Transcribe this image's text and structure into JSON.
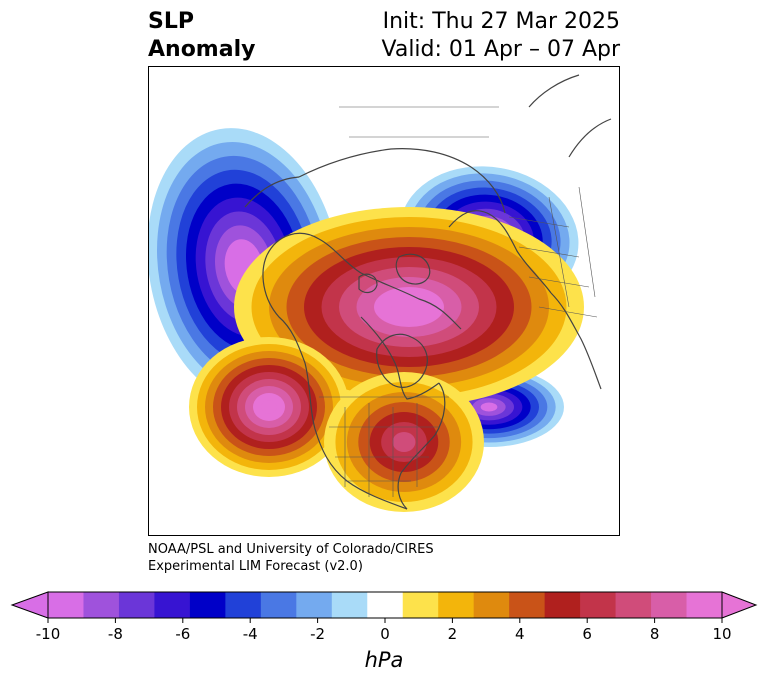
{
  "title": {
    "variable_line1": "SLP",
    "variable_line2": "Anomaly",
    "init": "Init: Thu 27 Mar 2025",
    "valid": "Valid: 01 Apr – 07 Apr"
  },
  "credit": {
    "line1": "NOAA/PSL and University of Colorado/CIRES",
    "line2": "Experimental LIM Forecast (v2.0)"
  },
  "colorbar": {
    "unit": "hPa",
    "levels": [
      -10,
      -9,
      -8,
      -7,
      -6,
      -5,
      -4,
      -3,
      -2,
      -1,
      1,
      2,
      3,
      4,
      5,
      6,
      7,
      8,
      9,
      10
    ],
    "colors": [
      "#d86ee6",
      "#9f52dc",
      "#6b36d8",
      "#3714d2",
      "#0000c8",
      "#2141d8",
      "#4a78e4",
      "#74aaef",
      "#a9dbf8",
      "#ffffff",
      "#fde24b",
      "#f3b50b",
      "#df8a0e",
      "#c95318",
      "#b0201e",
      "#c2344a",
      "#d04c7a",
      "#d85ea8",
      "#e673d6"
    ],
    "extend_low_color": "#d86ee6",
    "extend_high_color": "#e673d6",
    "tick_values": [
      -10,
      -8,
      -6,
      -4,
      -2,
      0,
      2,
      4,
      6,
      8,
      10
    ],
    "tick_labels": [
      "-10",
      "-8",
      "-6",
      "-4",
      "-2",
      "0",
      "2",
      "4",
      "6",
      "8",
      "10"
    ]
  },
  "map_features": [
    {
      "name": "negative anomaly over north pacific",
      "peak_hpa": -10
    },
    {
      "name": "negative anomaly over northern europe",
      "peak_hpa": -10
    },
    {
      "name": "negative anomaly over north atlantic",
      "peak_hpa": -9
    },
    {
      "name": "positive anomaly over arctic",
      "peak_hpa": 10
    },
    {
      "name": "positive anomaly over east pacific",
      "peak_hpa": 10
    },
    {
      "name": "positive anomaly over eastern north america",
      "peak_hpa": 7
    }
  ]
}
